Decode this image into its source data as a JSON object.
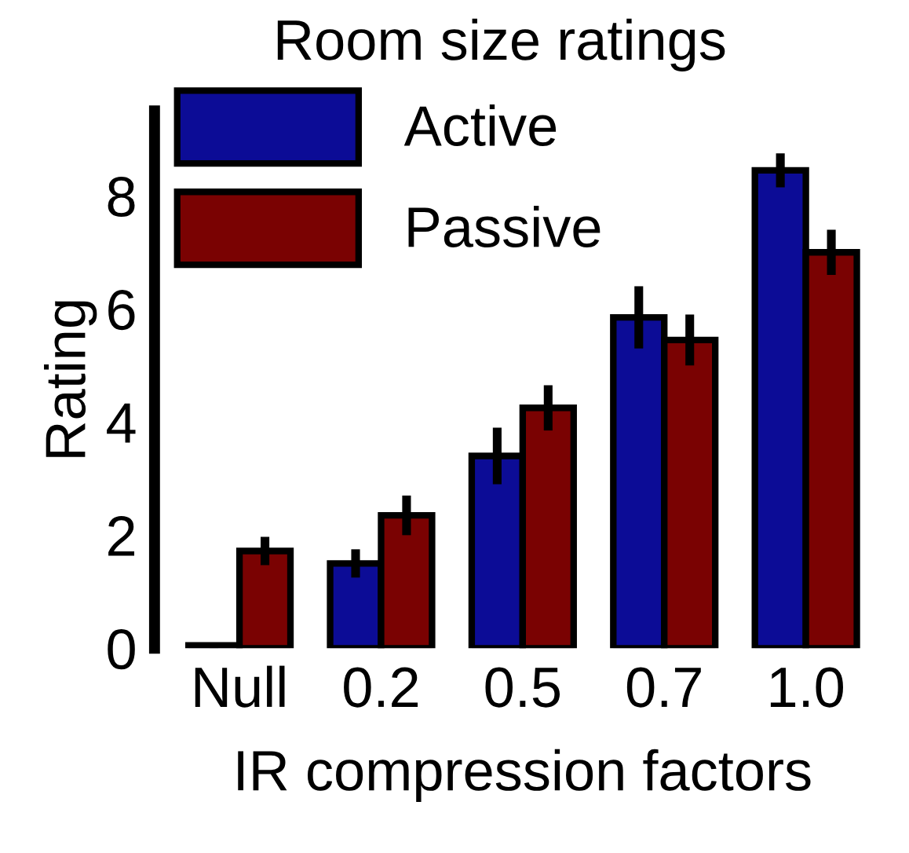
{
  "chart_data": {
    "type": "bar",
    "title": "Room size ratings",
    "xlabel": "IR compression factors",
    "ylabel": "Rating",
    "categories": [
      "Null",
      "0.2",
      "0.5",
      "0.7",
      "1.0"
    ],
    "series": [
      {
        "name": "Active",
        "color": "#0c0c96",
        "values": [
          0.05,
          1.5,
          3.4,
          5.85,
          8.45
        ],
        "errors": [
          0.05,
          0.25,
          0.5,
          0.55,
          0.3
        ]
      },
      {
        "name": "Passive",
        "color": "#7a0202",
        "values": [
          1.72,
          2.35,
          4.25,
          5.45,
          7.0
        ],
        "errors": [
          0.25,
          0.35,
          0.4,
          0.45,
          0.4
        ]
      }
    ],
    "ylim": [
      0,
      9.5
    ],
    "yticks": [
      0,
      2,
      4,
      6,
      8
    ],
    "legend": "top left",
    "grid": false
  }
}
